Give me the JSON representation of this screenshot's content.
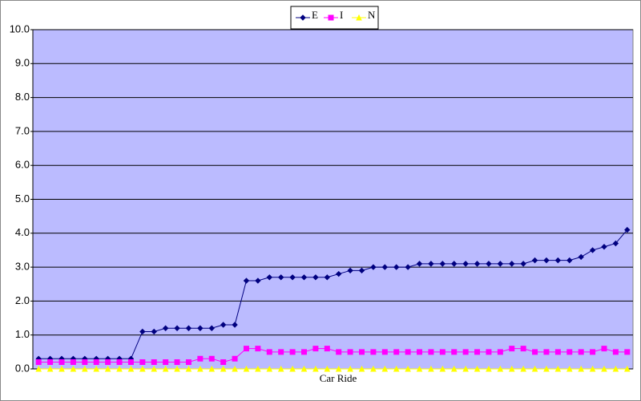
{
  "chart_data": {
    "type": "line",
    "x_label": "Car Ride",
    "categories": [
      null,
      null,
      null,
      null,
      null,
      null,
      null,
      null,
      null,
      null,
      null,
      null,
      null,
      null,
      null,
      null,
      null,
      null,
      null,
      null,
      null,
      null,
      null,
      null,
      null,
      null,
      null,
      null,
      null,
      null,
      null,
      null,
      null,
      null,
      null,
      null,
      null,
      null,
      null,
      null,
      null,
      null,
      null,
      null,
      null,
      null,
      null,
      null,
      null,
      null,
      null,
      null
    ],
    "series": [
      {
        "name": "E",
        "color": "#000080",
        "marker": "diamond",
        "values": [
          0.3,
          0.3,
          0.3,
          0.3,
          0.3,
          0.3,
          0.3,
          0.3,
          0.3,
          1.1,
          1.1,
          1.2,
          1.2,
          1.2,
          1.2,
          1.2,
          1.3,
          1.3,
          2.6,
          2.6,
          2.7,
          2.7,
          2.7,
          2.7,
          2.7,
          2.7,
          2.8,
          2.9,
          2.9,
          3.0,
          3.0,
          3.0,
          3.0,
          3.1,
          3.1,
          3.1,
          3.1,
          3.1,
          3.1,
          3.1,
          3.1,
          3.1,
          3.1,
          3.2,
          3.2,
          3.2,
          3.2,
          3.3,
          3.5,
          3.6,
          3.7,
          4.1
        ]
      },
      {
        "name": "I",
        "color": "#ff00ff",
        "marker": "square",
        "values": [
          0.2,
          0.2,
          0.2,
          0.2,
          0.2,
          0.2,
          0.2,
          0.2,
          0.2,
          0.2,
          0.2,
          0.2,
          0.2,
          0.2,
          0.3,
          0.3,
          0.2,
          0.3,
          0.6,
          0.6,
          0.5,
          0.5,
          0.5,
          0.5,
          0.6,
          0.6,
          0.5,
          0.5,
          0.5,
          0.5,
          0.5,
          0.5,
          0.5,
          0.5,
          0.5,
          0.5,
          0.5,
          0.5,
          0.5,
          0.5,
          0.5,
          0.6,
          0.6,
          0.5,
          0.5,
          0.5,
          0.5,
          0.5,
          0.5,
          0.6,
          0.5,
          0.5
        ]
      },
      {
        "name": "N",
        "color": "#ffff00",
        "marker": "triangle",
        "values": [
          0,
          0,
          0,
          0,
          0,
          0,
          0,
          0,
          0,
          0,
          0,
          0,
          0,
          0,
          0,
          0,
          0,
          0,
          0,
          0,
          0,
          0,
          0,
          0,
          0,
          0,
          0,
          0,
          0,
          0,
          0,
          0,
          0,
          0,
          0,
          0,
          0,
          0,
          0,
          0,
          0,
          0,
          0,
          0,
          0,
          0,
          0,
          0,
          0,
          0,
          0,
          0
        ]
      }
    ],
    "ylim": [
      0,
      10
    ],
    "yticks": [
      {
        "value": 0,
        "label": "0.0"
      },
      {
        "value": 1,
        "label": "1.0"
      },
      {
        "value": 2,
        "label": "2.0"
      },
      {
        "value": 3,
        "label": "3.0"
      },
      {
        "value": 4,
        "label": "4.0"
      },
      {
        "value": 5,
        "label": "5.0"
      },
      {
        "value": 6,
        "label": "6.0"
      },
      {
        "value": 7,
        "label": "7.0"
      },
      {
        "value": 8,
        "label": "8.0"
      },
      {
        "value": 9,
        "label": "9.0"
      },
      {
        "value": 10,
        "label": "10.0"
      }
    ],
    "grid": true,
    "legend": "top",
    "plot_background": "#bbbbff"
  }
}
